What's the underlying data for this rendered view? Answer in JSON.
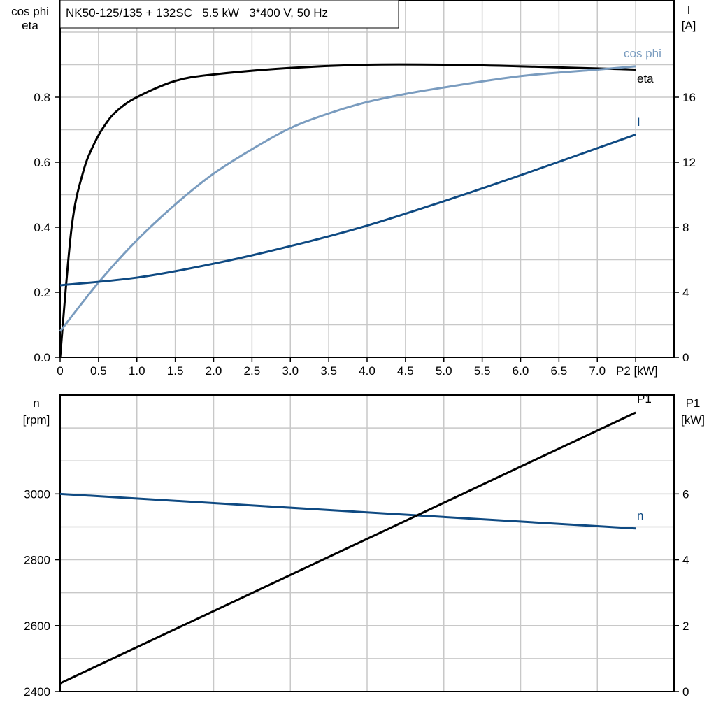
{
  "chart_data": [
    {
      "type": "line",
      "title": "NK50-125/135 + 132SC   5.5 kW   3*400 V, 50 Hz",
      "xlabel": "P2 [kW]",
      "ylabel_left": [
        "cos phi",
        "eta"
      ],
      "ylabel_right": [
        "I",
        "[A]"
      ],
      "xlim": [
        0,
        8
      ],
      "ylim_left": [
        0,
        1.0
      ],
      "ylim_right": [
        0,
        20
      ],
      "x_ticks": [
        "0",
        "0.5",
        "1.0",
        "1.5",
        "2.0",
        "2.5",
        "3.0",
        "3.5",
        "4.0",
        "4.5",
        "5.0",
        "5.5",
        "6.0",
        "6.5",
        "7.0"
      ],
      "y_ticks_left": [
        "0.0",
        "0.2",
        "0.4",
        "0.6",
        "0.8"
      ],
      "y_ticks_right": [
        "0",
        "4",
        "8",
        "12",
        "16"
      ],
      "grid": true,
      "series": [
        {
          "name": "eta",
          "axis": "left",
          "color": "#000000",
          "x": [
            0,
            0.15,
            0.3,
            0.45,
            0.6,
            0.75,
            1.0,
            1.5,
            2.0,
            3.0,
            4.0,
            5.0,
            6.0,
            7.5
          ],
          "y": [
            0,
            0.4,
            0.57,
            0.66,
            0.72,
            0.76,
            0.8,
            0.85,
            0.87,
            0.89,
            0.9,
            0.9,
            0.895,
            0.885
          ]
        },
        {
          "name": "cos phi",
          "axis": "left",
          "color": "#7a9cbf",
          "x": [
            0,
            0.5,
            1.0,
            1.5,
            2.0,
            2.5,
            3.0,
            3.5,
            4.0,
            4.5,
            5.0,
            6.0,
            7.0,
            7.5
          ],
          "y": [
            0.08,
            0.23,
            0.36,
            0.47,
            0.565,
            0.64,
            0.705,
            0.75,
            0.785,
            0.81,
            0.83,
            0.865,
            0.885,
            0.895
          ]
        },
        {
          "name": "I",
          "axis": "right",
          "color": "#0f4a82",
          "x": [
            0,
            1,
            2,
            3,
            4,
            5,
            6,
            7.5
          ],
          "y": [
            4.43,
            4.9,
            5.76,
            6.84,
            8.1,
            9.6,
            11.2,
            13.7
          ]
        }
      ]
    },
    {
      "type": "line",
      "xlim": [
        0,
        8
      ],
      "ylabel_left": [
        "n",
        "[rpm]"
      ],
      "ylabel_right": [
        "P1",
        "[kW]"
      ],
      "ylim_left": [
        2400,
        3300
      ],
      "ylim_right": [
        0,
        9
      ],
      "y_ticks_left": [
        "2400",
        "2600",
        "2800",
        "3000"
      ],
      "y_ticks_right": [
        "0",
        "2",
        "4",
        "6"
      ],
      "grid": true,
      "series": [
        {
          "name": "n",
          "axis": "left",
          "color": "#0f4a82",
          "x": [
            0,
            7.5
          ],
          "y": [
            3000,
            2895
          ]
        },
        {
          "name": "P1",
          "axis": "right",
          "color": "#000000",
          "x": [
            0,
            7.5
          ],
          "y": [
            0.25,
            8.47
          ]
        }
      ]
    }
  ]
}
